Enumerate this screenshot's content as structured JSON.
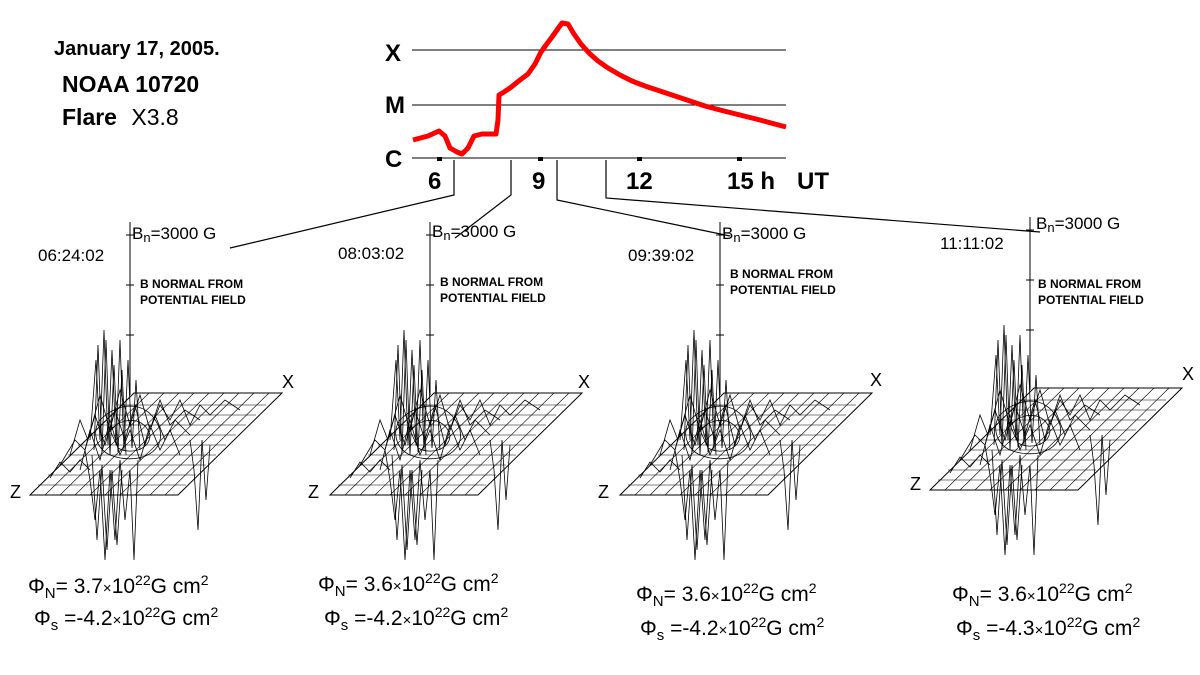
{
  "header": {
    "date": "January  17, 2005.",
    "region": "NOAA 10720",
    "flare_label": "Flare",
    "flare_class": "X3.8"
  },
  "goes": {
    "levels": [
      "X",
      "M",
      "C"
    ],
    "ticks": [
      "6",
      "9",
      "12",
      "15 h"
    ],
    "unit": "UT",
    "curve_color": "#ff0000"
  },
  "panels": [
    {
      "time": "06:24:02",
      "bn_symbol": "B",
      "bn_sub": "n",
      "bn_value": "=3000 G",
      "note": "B NORMAL FROM POTENTIAL FIELD",
      "axis_x": "X",
      "axis_z": "Z",
      "phi_n": {
        "sym": "Φ",
        "sub": "N",
        "eq": "= ",
        "mant": "3.7",
        "x": "×",
        "base": "10",
        "exp": "22",
        "unit": "G cm",
        "uexp": "2"
      },
      "phi_s": {
        "sym": "Φ",
        "sub": "s",
        "eq": " =",
        "mant": "-4.2",
        "x": "×",
        "base": "10",
        "exp": "22",
        "unit": "G cm",
        "uexp": "2"
      }
    },
    {
      "time": "08:03:02",
      "bn_symbol": "B",
      "bn_sub": "n",
      "bn_value": "=3000 G",
      "note": "B NORMAL FROM POTENTIAL FIELD",
      "axis_x": "X",
      "axis_z": "Z",
      "phi_n": {
        "sym": "Φ",
        "sub": "N",
        "eq": "= ",
        "mant": "3.6",
        "x": "×",
        "base": "10",
        "exp": "22",
        "unit": "G cm",
        "uexp": "2"
      },
      "phi_s": {
        "sym": "Φ",
        "sub": "s",
        "eq": " =",
        "mant": "-4.2",
        "x": "×",
        "base": "10",
        "exp": "22",
        "unit": "G cm",
        "uexp": "2"
      }
    },
    {
      "time": "09:39:02",
      "bn_symbol": "B",
      "bn_sub": "n",
      "bn_value": "=3000 G",
      "note": "B NORMAL FROM POTENTIAL FIELD",
      "axis_x": "X",
      "axis_z": "Z",
      "phi_n": {
        "sym": "Φ",
        "sub": "N",
        "eq": "= ",
        "mant": "3.6",
        "x": "×",
        "base": "10",
        "exp": "22",
        "unit": "G cm",
        "uexp": "2"
      },
      "phi_s": {
        "sym": "Φ",
        "sub": "s",
        "eq": " =",
        "mant": "-4.2",
        "x": "×",
        "base": "10",
        "exp": "22",
        "unit": "G cm",
        "uexp": "2"
      }
    },
    {
      "time": "11:11:02",
      "bn_symbol": "B",
      "bn_sub": "n",
      "bn_value": "=3000 G",
      "note": "B NORMAL FROM POTENTIAL FIELD",
      "axis_x": "X",
      "axis_z": "Z",
      "phi_n": {
        "sym": "Φ",
        "sub": "N",
        "eq": "= ",
        "mant": "3.6",
        "x": "×",
        "base": "10",
        "exp": "22",
        "unit": "G cm",
        "uexp": "2"
      },
      "phi_s": {
        "sym": "Φ",
        "sub": "s",
        "eq": " =",
        "mant": "-4.3",
        "x": "×",
        "base": "10",
        "exp": "22",
        "unit": "G cm",
        "uexp": "2"
      }
    }
  ]
}
